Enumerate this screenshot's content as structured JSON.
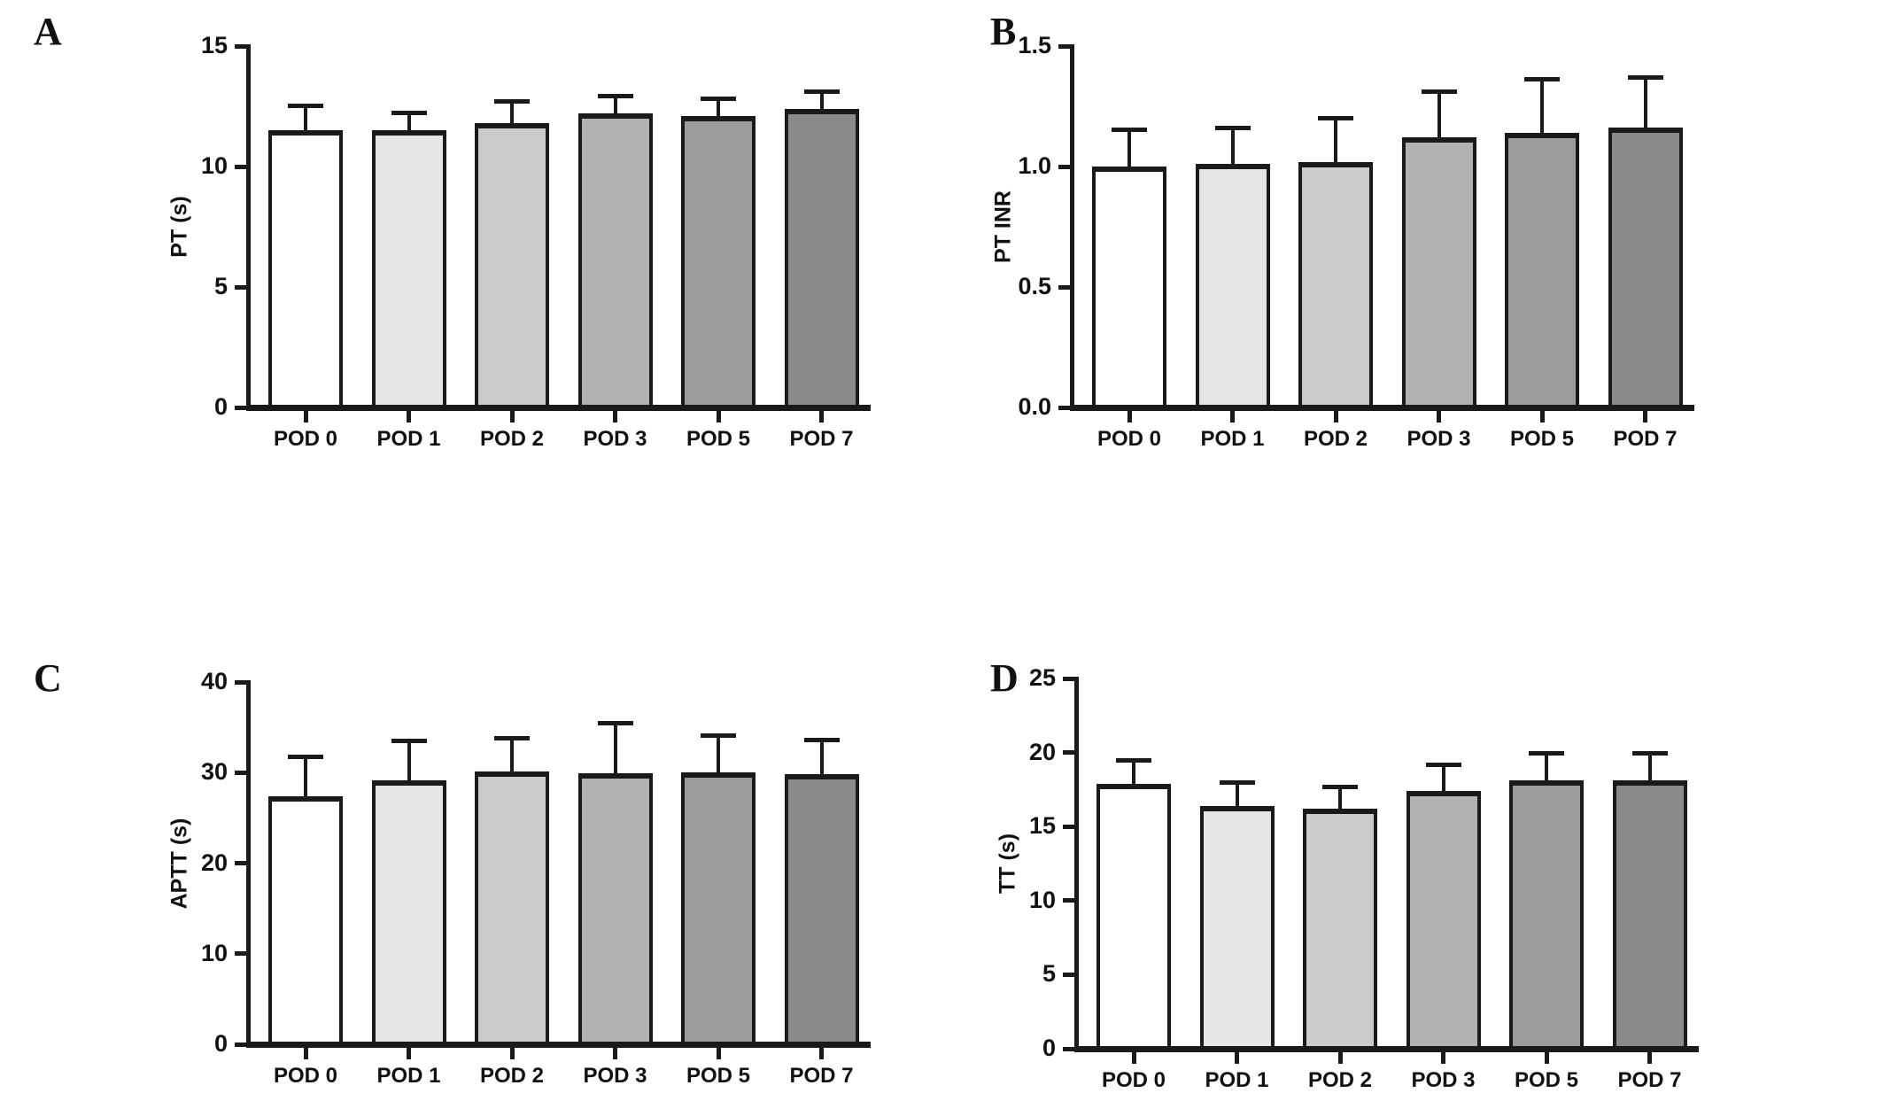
{
  "figure_title": "",
  "style": {
    "bar_fills": [
      "#ffffff",
      "#e6e6e6",
      "#cbcbcb",
      "#b2b2b2",
      "#9c9c9c",
      "#8a8a8a"
    ],
    "bar_border_color": "#1a1a1a",
    "axis_color": "#1a1a1a",
    "text_color": "#111111",
    "background": "#ffffff"
  },
  "chart_data": [
    {
      "type": "bar",
      "panel": "A",
      "title": "",
      "xlabel": "",
      "ylabel": "PT (s)",
      "ylim": [
        0,
        15
      ],
      "yticks": [
        0,
        5,
        10,
        15
      ],
      "ytick_labels": [
        "0",
        "5",
        "10",
        "15"
      ],
      "categories": [
        "POD 0",
        "POD 1",
        "POD 2",
        "POD 3",
        "POD 5",
        "POD 7"
      ],
      "values": [
        11.5,
        11.5,
        11.8,
        12.2,
        12.1,
        12.4
      ],
      "error_tops": [
        12.6,
        12.3,
        12.8,
        13.0,
        12.9,
        13.2
      ],
      "error_bars": "upper SD whiskers",
      "grid": false,
      "legend": false
    },
    {
      "type": "bar",
      "panel": "B",
      "title": "",
      "xlabel": "",
      "ylabel": "PT INR",
      "ylim": [
        0,
        1.5
      ],
      "yticks": [
        0,
        0.5,
        1.0,
        1.5
      ],
      "ytick_labels": [
        "0.0",
        "0.5",
        "1.0",
        "1.5"
      ],
      "categories": [
        "POD 0",
        "POD 1",
        "POD 2",
        "POD 3",
        "POD 5",
        "POD 7"
      ],
      "values": [
        1.0,
        1.01,
        1.02,
        1.12,
        1.14,
        1.16
      ],
      "error_tops": [
        1.16,
        1.17,
        1.21,
        1.32,
        1.37,
        1.38
      ],
      "error_bars": "upper SD whiskers",
      "grid": false,
      "legend": false
    },
    {
      "type": "bar",
      "panel": "C",
      "title": "",
      "xlabel": "",
      "ylabel": "APTT (s)",
      "ylim": [
        0,
        40
      ],
      "yticks": [
        0,
        10,
        20,
        30,
        40
      ],
      "ytick_labels": [
        "0",
        "10",
        "20",
        "30",
        "40"
      ],
      "categories": [
        "POD 0",
        "POD 1",
        "POD 2",
        "POD 3",
        "POD 5",
        "POD 7"
      ],
      "values": [
        27.4,
        29.1,
        30.1,
        29.9,
        30.0,
        29.8
      ],
      "error_tops": [
        32.0,
        33.7,
        34.0,
        35.7,
        34.3,
        33.8
      ],
      "error_bars": "upper SD whiskers",
      "grid": false,
      "legend": false
    },
    {
      "type": "bar",
      "panel": "D",
      "title": "",
      "xlabel": "",
      "ylabel": "TT (s)",
      "ylim": [
        0,
        25
      ],
      "yticks": [
        0,
        5,
        10,
        15,
        20,
        25
      ],
      "ytick_labels": [
        "0",
        "5",
        "10",
        "15",
        "20",
        "25"
      ],
      "categories": [
        "POD 0",
        "POD 1",
        "POD 2",
        "POD 3",
        "POD 5",
        "POD 7"
      ],
      "values": [
        17.9,
        16.4,
        16.2,
        17.4,
        18.1,
        18.1
      ],
      "error_tops": [
        19.6,
        18.1,
        17.8,
        19.3,
        20.1,
        20.1
      ],
      "error_bars": "upper SD whiskers",
      "grid": false,
      "legend": false
    }
  ]
}
